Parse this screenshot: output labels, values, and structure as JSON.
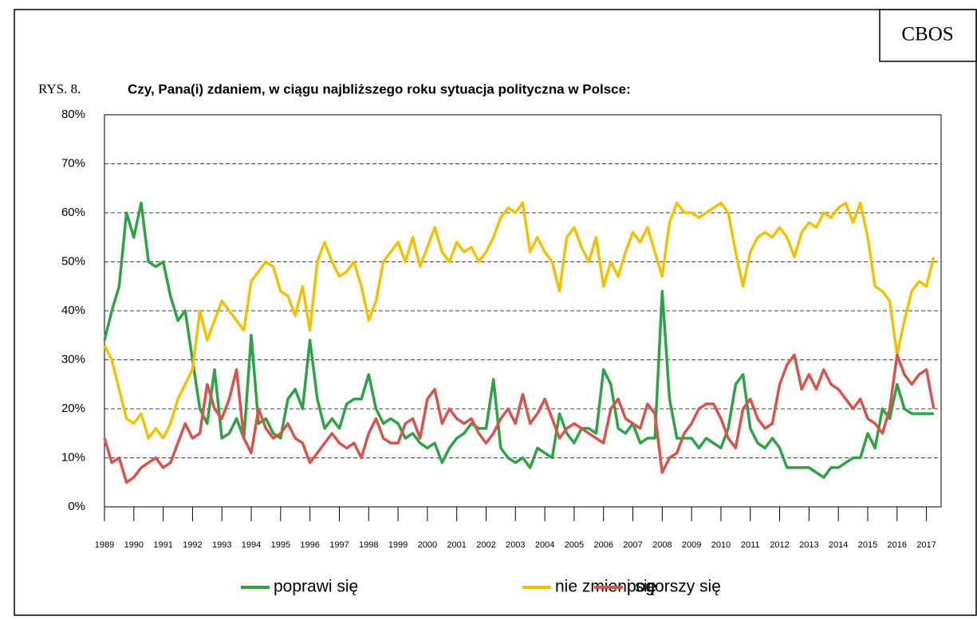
{
  "badge": "CBOS",
  "figure_label": "RYS. 8.",
  "chart_data": {
    "type": "line",
    "title": "Czy, Pana(i) zdaniem, w ciągu najbliższego roku sytuacja polityczna w Polsce:",
    "x": [
      1989,
      1989.25,
      1989.5,
      1989.75,
      1990,
      1990.25,
      1990.5,
      1990.75,
      1991,
      1991.25,
      1991.5,
      1991.75,
      1992,
      1992.25,
      1992.5,
      1992.75,
      1993,
      1993.25,
      1993.5,
      1993.75,
      1994,
      1994.25,
      1994.5,
      1994.75,
      1995,
      1995.25,
      1995.5,
      1995.75,
      1996,
      1996.25,
      1996.5,
      1996.75,
      1997,
      1997.25,
      1997.5,
      1997.75,
      1998,
      1998.25,
      1998.5,
      1998.75,
      1999,
      1999.25,
      1999.5,
      1999.75,
      2000,
      2000.25,
      2000.5,
      2000.75,
      2001,
      2001.25,
      2001.5,
      2001.75,
      2002,
      2002.25,
      2002.5,
      2002.75,
      2003,
      2003.25,
      2003.5,
      2003.75,
      2004,
      2004.25,
      2004.5,
      2004.75,
      2005,
      2005.25,
      2005.5,
      2005.75,
      2006,
      2006.25,
      2006.5,
      2006.75,
      2007,
      2007.25,
      2007.5,
      2007.75,
      2008,
      2008.25,
      2008.5,
      2008.75,
      2009,
      2009.25,
      2009.5,
      2009.75,
      2010,
      2010.25,
      2010.5,
      2010.75,
      2011,
      2011.25,
      2011.5,
      2011.75,
      2012,
      2012.25,
      2012.5,
      2012.75,
      2013,
      2013.25,
      2013.5,
      2013.75,
      2014,
      2014.25,
      2014.5,
      2014.75,
      2015,
      2015.25,
      2015.5,
      2015.75,
      2016,
      2016.25,
      2016.5,
      2016.75,
      2017,
      2017.25
    ],
    "series": [
      {
        "name": "poprawi się",
        "color": "#2ca444",
        "values": [
          34,
          40,
          45,
          60,
          55,
          62,
          50,
          49,
          50,
          43,
          38,
          40,
          30,
          20,
          17,
          28,
          14,
          15,
          18,
          14,
          35,
          17,
          18,
          15,
          14,
          22,
          24,
          20,
          34,
          22,
          16,
          18,
          16,
          21,
          22,
          22,
          27,
          20,
          17,
          18,
          17,
          14,
          15,
          13,
          12,
          13,
          9,
          12,
          14,
          15,
          17,
          16,
          16,
          26,
          12,
          10,
          9,
          10,
          8,
          12,
          11,
          10,
          19,
          15,
          13,
          16,
          16,
          15,
          28,
          25,
          16,
          15,
          17,
          13,
          14,
          14,
          44,
          22,
          14,
          14,
          14,
          12,
          14,
          13,
          12,
          16,
          25,
          27,
          16,
          13,
          12,
          14,
          12,
          8,
          8,
          8,
          8,
          7,
          6,
          8,
          8,
          9,
          10,
          10,
          15,
          12,
          20,
          18,
          25,
          20,
          19,
          19,
          19,
          19
        ]
      },
      {
        "name": "nie zmieni się",
        "color": "#f5c000",
        "values": [
          33,
          30,
          24,
          18,
          17,
          19,
          14,
          16,
          14,
          17,
          22,
          25,
          28,
          40,
          34,
          38,
          42,
          40,
          38,
          36,
          46,
          48,
          50,
          49,
          44,
          43,
          39,
          45,
          36,
          50,
          54,
          50,
          47,
          48,
          50,
          45,
          38,
          42,
          50,
          52,
          54,
          50,
          55,
          49,
          53,
          57,
          52,
          50,
          54,
          52,
          53,
          50,
          52,
          55,
          59,
          61,
          60,
          62,
          52,
          55,
          52,
          50,
          44,
          55,
          57,
          53,
          50,
          55,
          45,
          50,
          47,
          52,
          56,
          54,
          57,
          52,
          47,
          58,
          62,
          60,
          60,
          59,
          60,
          61,
          62,
          60,
          52,
          45,
          52,
          55,
          56,
          55,
          57,
          55,
          51,
          56,
          58,
          57,
          60,
          59,
          61,
          62,
          58,
          62,
          55,
          45,
          44,
          42,
          31,
          38,
          44,
          46,
          45,
          51
        ]
      },
      {
        "name": "pogorszy się",
        "color": "#d9534a",
        "values": [
          14,
          9,
          10,
          5,
          6,
          8,
          9,
          10,
          8,
          9,
          13,
          17,
          14,
          15,
          25,
          20,
          18,
          22,
          28,
          14,
          11,
          20,
          16,
          14,
          15,
          17,
          14,
          13,
          9,
          11,
          13,
          15,
          13,
          12,
          13,
          10,
          15,
          18,
          14,
          13,
          13,
          17,
          18,
          14,
          22,
          24,
          17,
          20,
          18,
          17,
          18,
          15,
          13,
          15,
          18,
          20,
          17,
          23,
          17,
          19,
          22,
          18,
          14,
          16,
          17,
          16,
          15,
          14,
          13,
          20,
          22,
          18,
          17,
          16,
          21,
          19,
          7,
          10,
          11,
          15,
          17,
          20,
          21,
          21,
          18,
          14,
          12,
          20,
          22,
          18,
          16,
          17,
          25,
          29,
          31,
          24,
          27,
          24,
          28,
          25,
          24,
          22,
          20,
          22,
          18,
          17,
          15,
          20,
          31,
          27,
          25,
          27,
          28,
          20
        ]
      }
    ],
    "xlim": [
      1989,
      2017.5
    ],
    "xticks": [
      1989,
      1990,
      1991,
      1992,
      1993,
      1994,
      1995,
      1996,
      1997,
      1998,
      1999,
      2000,
      2001,
      2002,
      2003,
      2004,
      2005,
      2006,
      2007,
      2008,
      2009,
      2010,
      2011,
      2012,
      2013,
      2014,
      2015,
      2016,
      2017
    ],
    "ylim": [
      0,
      80
    ],
    "yticks": [
      {
        "value": 0,
        "label": "0%"
      },
      {
        "value": 10,
        "label": "10%"
      },
      {
        "value": 20,
        "label": "20%"
      },
      {
        "value": 30,
        "label": "30%"
      },
      {
        "value": 40,
        "label": "40%"
      },
      {
        "value": 50,
        "label": "50%"
      },
      {
        "value": 60,
        "label": "60%"
      },
      {
        "value": 70,
        "label": "70%"
      },
      {
        "value": 80,
        "label": "80%"
      }
    ],
    "grid": true,
    "legend": "bottom"
  }
}
